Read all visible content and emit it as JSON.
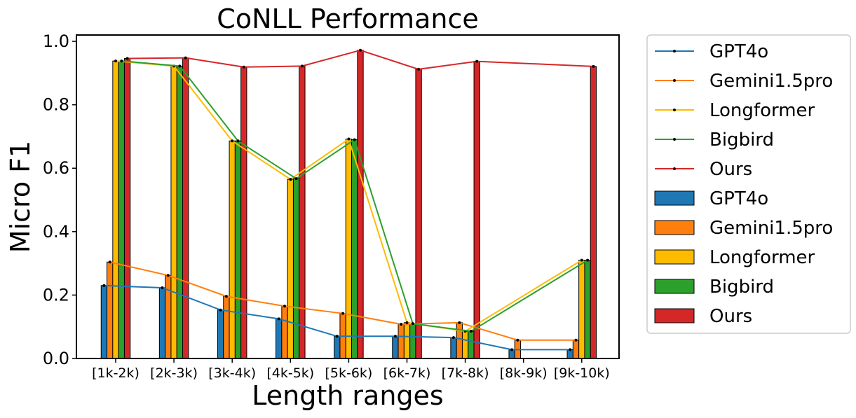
{
  "chart_data": {
    "type": "bar",
    "title": "CoNLL Performance",
    "xlabel": "Length ranges",
    "ylabel": "Micro F1",
    "ylim": [
      0,
      1.02
    ],
    "yticks": [
      "0.0",
      "0.2",
      "0.4",
      "0.6",
      "0.8",
      "1.0"
    ],
    "grid": false,
    "legend_position": "outside-right",
    "categories": [
      "[1k-2k)",
      "[2k-3k)",
      "[3k-4k)",
      "[4k-5k)",
      "[5k-6k)",
      "[6k-7k)",
      "[7k-8k)",
      "[8k-9k)",
      "[9k-10k)"
    ],
    "series": [
      {
        "name": "GPT4o",
        "color": "#1f77b4",
        "values": [
          0.23,
          0.223,
          0.153,
          0.125,
          0.07,
          0.07,
          0.066,
          0.028,
          0.028
        ]
      },
      {
        "name": "Gemini1.5pro",
        "color": "#ff7f0e",
        "values": [
          0.304,
          0.262,
          0.196,
          0.165,
          0.142,
          0.108,
          0.113,
          0.058,
          0.058
        ]
      },
      {
        "name": "Longformer",
        "color": "#ffbb00",
        "values": [
          0.938,
          0.922,
          0.686,
          0.565,
          0.692,
          0.113,
          0.086,
          null,
          0.31
        ]
      },
      {
        "name": "Bigbird",
        "color": "#2ca02c",
        "values": [
          0.938,
          0.922,
          0.686,
          0.567,
          0.69,
          0.11,
          0.086,
          null,
          0.31
        ]
      },
      {
        "name": "Ours",
        "color": "#d62728",
        "values": [
          0.946,
          0.948,
          0.919,
          0.922,
          0.972,
          0.912,
          0.937,
          null,
          0.921
        ]
      }
    ]
  }
}
